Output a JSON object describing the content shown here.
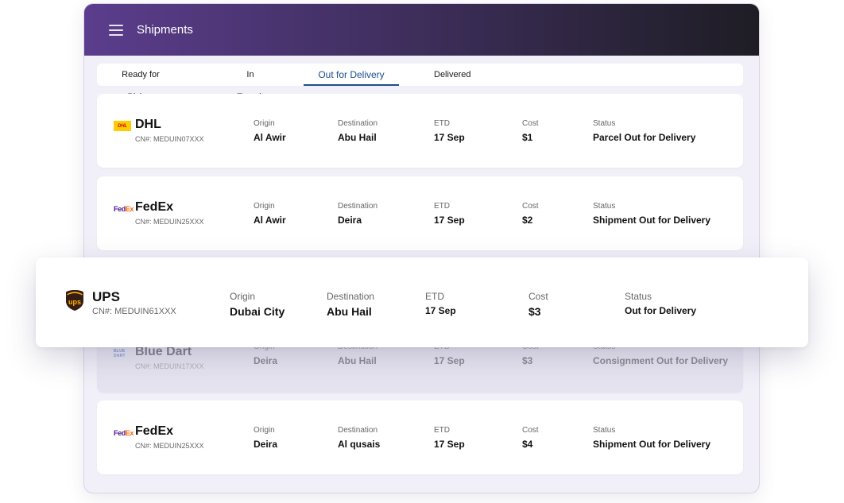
{
  "header": {
    "title": "Shipments"
  },
  "tabs": [
    {
      "label": "Ready for Pickup"
    },
    {
      "label": "In Transit"
    },
    {
      "label": "Out for Delivery"
    },
    {
      "label": "Delivered"
    }
  ],
  "active_tab": "Out for Delivery",
  "field_labels": {
    "origin": "Origin",
    "destination": "Destination",
    "etd": "ETD",
    "cost": "Cost",
    "status": "Status"
  },
  "shipments": [
    {
      "carrier": "DHL",
      "logo_icon": "dhl-logo-icon",
      "logo_text": "DHL",
      "cn": "CN#: MEDUIN07XXX",
      "origin": "Al Awir",
      "destination": "Abu Hail",
      "etd": "17 Sep",
      "cost": "$1",
      "status": "Parcel Out for Delivery"
    },
    {
      "carrier": "FedEx",
      "logo_icon": "fedex-logo-icon",
      "logo_fe": "Fed",
      "logo_ex": "Ex",
      "cn": "CN#: MEDUIN25XXX",
      "origin": "Al Awir",
      "destination": "Deira",
      "etd": "17 Sep",
      "cost": "$2",
      "status": "Shipment Out for Delivery"
    },
    {
      "carrier": "Blue Dart",
      "logo_icon": "blue-dart-logo-icon",
      "logo_text": "BLUE DART",
      "cn": "CN#: MEDUIN17XXX",
      "origin": "Deira",
      "destination": "Abu Hail",
      "etd": "17 Sep",
      "cost": "$3",
      "status": "Consignment Out for Delivery"
    },
    {
      "carrier": "FedEx",
      "logo_icon": "fedex-logo-icon",
      "logo_fe": "Fed",
      "logo_ex": "Ex",
      "cn": "CN#: MEDUIN25XXX",
      "origin": "Deira",
      "destination": "Al qusais",
      "etd": "17 Sep",
      "cost": "$4",
      "status": "Shipment Out for Delivery"
    }
  ],
  "highlighted": {
    "carrier": "UPS",
    "logo_icon": "ups-logo-icon",
    "logo_text": "ups",
    "cn": "CN#: MEDUIN61XXX",
    "origin": "Dubai City",
    "destination": "Abu Hail",
    "etd": "17 Sep",
    "cost": "$3",
    "status": "Out for Delivery"
  },
  "colors": {
    "header_start": "#5b3d8d",
    "header_end": "#1e1d24",
    "active_tab": "#1b4e8f",
    "ups_brown": "#351c15",
    "ups_gold": "#ffb500"
  }
}
